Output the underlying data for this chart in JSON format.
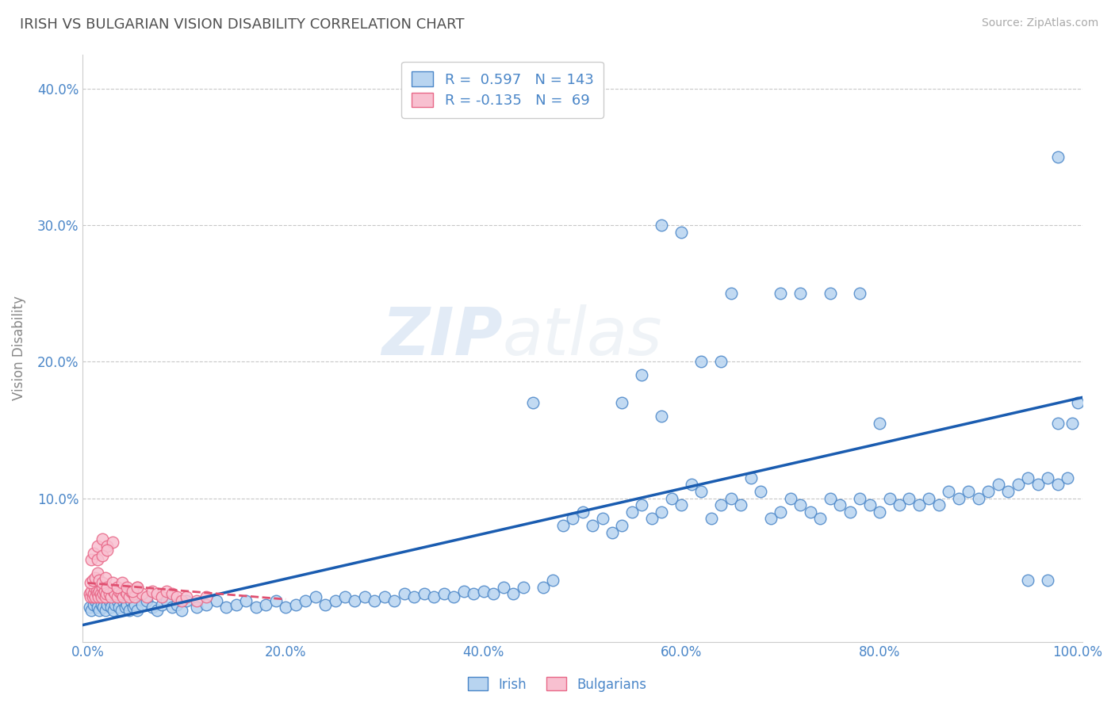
{
  "title": "IRISH VS BULGARIAN VISION DISABILITY CORRELATION CHART",
  "source": "Source: ZipAtlas.com",
  "ylabel": "Vision Disability",
  "xlim": [
    -0.005,
    1.005
  ],
  "ylim": [
    -0.005,
    0.425
  ],
  "xticks": [
    0.0,
    0.2,
    0.4,
    0.6,
    0.8,
    1.0
  ],
  "xtick_labels": [
    "0.0%",
    "20.0%",
    "40.0%",
    "60.0%",
    "80.0%",
    "100.0%"
  ],
  "yticks": [
    0.0,
    0.1,
    0.2,
    0.3,
    0.4
  ],
  "ytick_labels": [
    "",
    "10.0%",
    "20.0%",
    "30.0%",
    "40.0%"
  ],
  "irish_color": "#b8d4f0",
  "irish_edge_color": "#4a86c8",
  "bulgarian_color": "#f8c0d0",
  "bulgarian_edge_color": "#e86888",
  "irish_line_color": "#1a5cb0",
  "bulgarian_line_color": "#e05070",
  "grid_color": "#c8c8c8",
  "title_color": "#505050",
  "axis_color": "#4a86c8",
  "r_irish": 0.597,
  "n_irish": 143,
  "r_bulgarian": -0.135,
  "n_bulgarian": 69,
  "watermark": "ZIPatlas",
  "irish_x": [
    0.002,
    0.004,
    0.006,
    0.008,
    0.01,
    0.012,
    0.014,
    0.016,
    0.018,
    0.02,
    0.022,
    0.024,
    0.026,
    0.028,
    0.03,
    0.032,
    0.034,
    0.036,
    0.038,
    0.04,
    0.042,
    0.044,
    0.046,
    0.048,
    0.05,
    0.055,
    0.06,
    0.065,
    0.07,
    0.075,
    0.08,
    0.085,
    0.09,
    0.095,
    0.1,
    0.11,
    0.12,
    0.13,
    0.14,
    0.15,
    0.16,
    0.17,
    0.18,
    0.19,
    0.2,
    0.21,
    0.22,
    0.23,
    0.24,
    0.25,
    0.26,
    0.27,
    0.28,
    0.29,
    0.3,
    0.31,
    0.32,
    0.33,
    0.34,
    0.35,
    0.36,
    0.37,
    0.38,
    0.39,
    0.4,
    0.41,
    0.42,
    0.43,
    0.44,
    0.45,
    0.46,
    0.47,
    0.48,
    0.49,
    0.5,
    0.51,
    0.52,
    0.53,
    0.54,
    0.55,
    0.56,
    0.57,
    0.58,
    0.59,
    0.6,
    0.61,
    0.62,
    0.63,
    0.64,
    0.65,
    0.66,
    0.67,
    0.68,
    0.69,
    0.7,
    0.71,
    0.72,
    0.73,
    0.74,
    0.75,
    0.76,
    0.77,
    0.78,
    0.79,
    0.8,
    0.81,
    0.82,
    0.83,
    0.84,
    0.85,
    0.86,
    0.87,
    0.88,
    0.89,
    0.9,
    0.91,
    0.92,
    0.93,
    0.94,
    0.95,
    0.96,
    0.97,
    0.98,
    0.99,
    1.0,
    0.58,
    0.6,
    0.65,
    0.7,
    0.72,
    0.75,
    0.78,
    0.8,
    0.95,
    0.97,
    0.98,
    0.98,
    0.995,
    0.62,
    0.64,
    0.54,
    0.56,
    0.58
  ],
  "irish_y": [
    0.02,
    0.018,
    0.022,
    0.025,
    0.02,
    0.018,
    0.022,
    0.02,
    0.018,
    0.022,
    0.025,
    0.02,
    0.018,
    0.022,
    0.025,
    0.02,
    0.018,
    0.025,
    0.02,
    0.022,
    0.018,
    0.025,
    0.02,
    0.022,
    0.018,
    0.022,
    0.025,
    0.02,
    0.018,
    0.022,
    0.025,
    0.02,
    0.022,
    0.018,
    0.025,
    0.02,
    0.022,
    0.025,
    0.02,
    0.022,
    0.025,
    0.02,
    0.022,
    0.025,
    0.02,
    0.022,
    0.025,
    0.028,
    0.022,
    0.025,
    0.028,
    0.025,
    0.028,
    0.025,
    0.028,
    0.025,
    0.03,
    0.028,
    0.03,
    0.028,
    0.03,
    0.028,
    0.032,
    0.03,
    0.032,
    0.03,
    0.035,
    0.03,
    0.035,
    0.17,
    0.035,
    0.04,
    0.08,
    0.085,
    0.09,
    0.08,
    0.085,
    0.075,
    0.08,
    0.09,
    0.095,
    0.085,
    0.09,
    0.1,
    0.095,
    0.11,
    0.105,
    0.085,
    0.095,
    0.1,
    0.095,
    0.115,
    0.105,
    0.085,
    0.09,
    0.1,
    0.095,
    0.09,
    0.085,
    0.1,
    0.095,
    0.09,
    0.1,
    0.095,
    0.09,
    0.1,
    0.095,
    0.1,
    0.095,
    0.1,
    0.095,
    0.105,
    0.1,
    0.105,
    0.1,
    0.105,
    0.11,
    0.105,
    0.11,
    0.115,
    0.11,
    0.115,
    0.11,
    0.115,
    0.17,
    0.3,
    0.295,
    0.25,
    0.25,
    0.25,
    0.25,
    0.25,
    0.155,
    0.04,
    0.04,
    0.35,
    0.155,
    0.155,
    0.2,
    0.2,
    0.17,
    0.19,
    0.16
  ],
  "bulgarian_x": [
    0.002,
    0.003,
    0.004,
    0.005,
    0.006,
    0.007,
    0.008,
    0.009,
    0.01,
    0.011,
    0.012,
    0.013,
    0.014,
    0.015,
    0.016,
    0.017,
    0.018,
    0.019,
    0.02,
    0.022,
    0.024,
    0.026,
    0.028,
    0.03,
    0.032,
    0.034,
    0.036,
    0.038,
    0.04,
    0.042,
    0.044,
    0.046,
    0.048,
    0.05,
    0.055,
    0.06,
    0.065,
    0.07,
    0.075,
    0.08,
    0.085,
    0.09,
    0.095,
    0.1,
    0.11,
    0.12,
    0.003,
    0.005,
    0.008,
    0.01,
    0.012,
    0.015,
    0.018,
    0.02,
    0.025,
    0.03,
    0.035,
    0.04,
    0.045,
    0.05,
    0.004,
    0.006,
    0.01,
    0.015,
    0.02,
    0.025,
    0.01,
    0.015,
    0.02
  ],
  "bulgarian_y": [
    0.03,
    0.028,
    0.032,
    0.028,
    0.03,
    0.035,
    0.028,
    0.032,
    0.03,
    0.028,
    0.032,
    0.03,
    0.028,
    0.035,
    0.03,
    0.032,
    0.028,
    0.03,
    0.035,
    0.03,
    0.028,
    0.032,
    0.03,
    0.028,
    0.032,
    0.03,
    0.028,
    0.032,
    0.03,
    0.028,
    0.032,
    0.03,
    0.028,
    0.035,
    0.03,
    0.028,
    0.032,
    0.03,
    0.028,
    0.032,
    0.03,
    0.028,
    0.025,
    0.028,
    0.025,
    0.028,
    0.038,
    0.04,
    0.042,
    0.045,
    0.04,
    0.038,
    0.042,
    0.035,
    0.038,
    0.035,
    0.038,
    0.035,
    0.032,
    0.035,
    0.055,
    0.06,
    0.065,
    0.07,
    0.065,
    0.068,
    0.055,
    0.058,
    0.062
  ]
}
